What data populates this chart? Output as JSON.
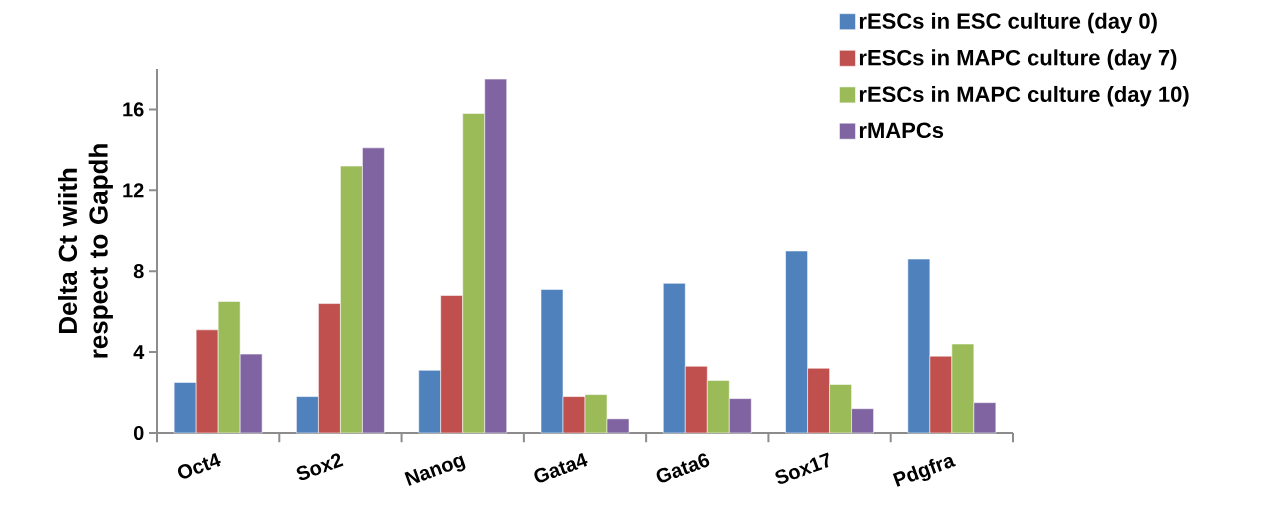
{
  "chart_data": {
    "type": "bar",
    "ylabel": "Delta Ct wiith respect to Gapdh",
    "categories": [
      "Oct4",
      "Sox2",
      "Nanog",
      "Gata4",
      "Gata6",
      "Sox17",
      "Pdgfra"
    ],
    "series": [
      {
        "name": "rESCs in ESC culture (day 0)",
        "color": "#4f81bd",
        "values": [
          2.5,
          1.8,
          3.1,
          7.1,
          7.4,
          9.0,
          8.6
        ]
      },
      {
        "name": "rESCs in MAPC culture (day 7)",
        "color": "#c0504d",
        "values": [
          5.1,
          6.4,
          6.8,
          1.8,
          3.3,
          3.2,
          3.8
        ]
      },
      {
        "name": "rESCs in MAPC culture (day 10)",
        "color": "#9bbb59",
        "values": [
          6.5,
          13.2,
          15.8,
          1.9,
          2.6,
          2.4,
          4.4
        ]
      },
      {
        "name": "rMAPCs",
        "color": "#8064a2",
        "values": [
          3.9,
          14.1,
          17.5,
          0.7,
          1.7,
          1.2,
          1.5
        ]
      }
    ],
    "ylim": [
      0,
      18
    ],
    "yticks": [
      0,
      4,
      8,
      12,
      16
    ],
    "grid": false,
    "legend": "top right"
  }
}
